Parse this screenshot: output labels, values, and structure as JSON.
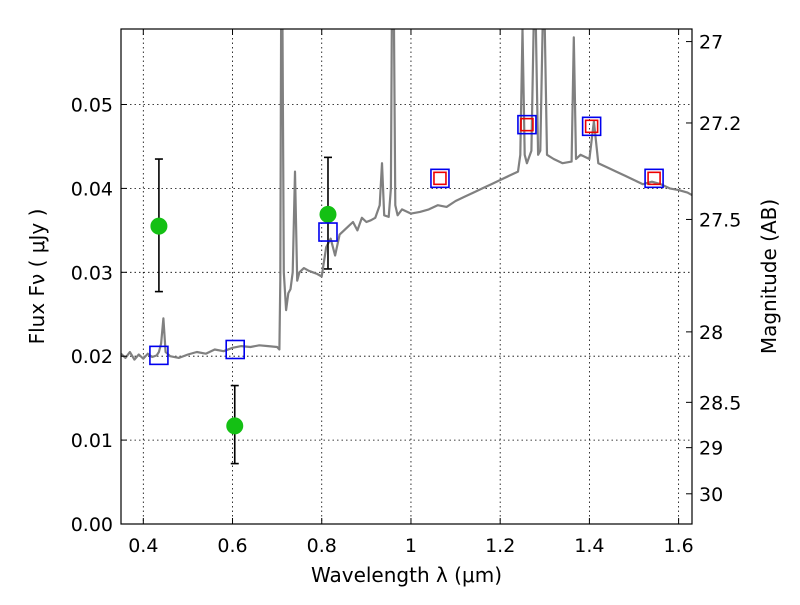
{
  "chart_data": {
    "type": "scatter",
    "xlabel": "Wavelength  λ (μm)",
    "ylabel": "Flux  Fν  ( μJy )",
    "y2label": "Magnitude (AB)",
    "xlim": [
      0.35,
      1.63
    ],
    "ylim": [
      0.0,
      0.059
    ],
    "grid": true,
    "x_ticks": [
      0.4,
      0.6,
      0.8,
      1.0,
      1.2,
      1.4,
      1.6
    ],
    "x_tick_labels": [
      "0.4",
      "0.6",
      "0.8",
      "1",
      "1.2",
      "1.4",
      "1.6"
    ],
    "y_ticks": [
      0.0,
      0.01,
      0.02,
      0.03,
      0.04,
      0.05
    ],
    "y_tick_labels": [
      "0.00",
      "0.01",
      "0.02",
      "0.03",
      "0.04",
      "0.05"
    ],
    "y2_ticks": [
      {
        "label": "27",
        "flux": 0.0575
      },
      {
        "label": "27.2",
        "flux": 0.0478
      },
      {
        "label": "27.5",
        "flux": 0.0363
      },
      {
        "label": "28",
        "flux": 0.0229
      },
      {
        "label": "28.5",
        "flux": 0.0145
      },
      {
        "label": "29",
        "flux": 0.0091
      },
      {
        "label": "30",
        "flux": 0.0036
      }
    ],
    "series": [
      {
        "name": "model spectrum",
        "kind": "line",
        "color": "#808080",
        "points": [
          [
            0.35,
            0.0203
          ],
          [
            0.36,
            0.0198
          ],
          [
            0.37,
            0.0205
          ],
          [
            0.38,
            0.0196
          ],
          [
            0.39,
            0.0202
          ],
          [
            0.4,
            0.0197
          ],
          [
            0.41,
            0.0203
          ],
          [
            0.42,
            0.0199
          ],
          [
            0.43,
            0.0201
          ],
          [
            0.435,
            0.0205
          ],
          [
            0.44,
            0.0215
          ],
          [
            0.445,
            0.0245
          ],
          [
            0.45,
            0.0205
          ],
          [
            0.46,
            0.02
          ],
          [
            0.48,
            0.0198
          ],
          [
            0.5,
            0.0202
          ],
          [
            0.52,
            0.0205
          ],
          [
            0.54,
            0.0203
          ],
          [
            0.56,
            0.0208
          ],
          [
            0.58,
            0.0206
          ],
          [
            0.6,
            0.021
          ],
          [
            0.62,
            0.0212
          ],
          [
            0.64,
            0.0211
          ],
          [
            0.66,
            0.0213
          ],
          [
            0.68,
            0.0212
          ],
          [
            0.7,
            0.0211
          ],
          [
            0.705,
            0.0208
          ],
          [
            0.707,
            0.029
          ],
          [
            0.709,
            0.059
          ],
          [
            0.712,
            0.059
          ],
          [
            0.715,
            0.03
          ],
          [
            0.72,
            0.0255
          ],
          [
            0.725,
            0.0275
          ],
          [
            0.73,
            0.028
          ],
          [
            0.735,
            0.03
          ],
          [
            0.74,
            0.042
          ],
          [
            0.745,
            0.029
          ],
          [
            0.75,
            0.03
          ],
          [
            0.76,
            0.0305
          ],
          [
            0.77,
            0.0302
          ],
          [
            0.78,
            0.03
          ],
          [
            0.79,
            0.0298
          ],
          [
            0.8,
            0.0295
          ],
          [
            0.81,
            0.033
          ],
          [
            0.82,
            0.034
          ],
          [
            0.83,
            0.032
          ],
          [
            0.84,
            0.0345
          ],
          [
            0.85,
            0.035
          ],
          [
            0.86,
            0.0355
          ],
          [
            0.87,
            0.036
          ],
          [
            0.88,
            0.035
          ],
          [
            0.89,
            0.0365
          ],
          [
            0.9,
            0.036
          ],
          [
            0.91,
            0.0362
          ],
          [
            0.92,
            0.0365
          ],
          [
            0.93,
            0.038
          ],
          [
            0.935,
            0.043
          ],
          [
            0.94,
            0.0368
          ],
          [
            0.95,
            0.0366
          ],
          [
            0.955,
            0.04
          ],
          [
            0.957,
            0.059
          ],
          [
            0.962,
            0.059
          ],
          [
            0.965,
            0.038
          ],
          [
            0.97,
            0.0368
          ],
          [
            0.98,
            0.0375
          ],
          [
            1.0,
            0.037
          ],
          [
            1.02,
            0.0372
          ],
          [
            1.04,
            0.0375
          ],
          [
            1.06,
            0.038
          ],
          [
            1.08,
            0.0378
          ],
          [
            1.1,
            0.0385
          ],
          [
            1.12,
            0.039
          ],
          [
            1.14,
            0.0395
          ],
          [
            1.16,
            0.04
          ],
          [
            1.18,
            0.0405
          ],
          [
            1.2,
            0.041
          ],
          [
            1.22,
            0.0415
          ],
          [
            1.24,
            0.042
          ],
          [
            1.245,
            0.044
          ],
          [
            1.25,
            0.059
          ],
          [
            1.255,
            0.044
          ],
          [
            1.26,
            0.043
          ],
          [
            1.27,
            0.0445
          ],
          [
            1.275,
            0.059
          ],
          [
            1.28,
            0.059
          ],
          [
            1.285,
            0.044
          ],
          [
            1.29,
            0.0445
          ],
          [
            1.295,
            0.059
          ],
          [
            1.3,
            0.059
          ],
          [
            1.305,
            0.044
          ],
          [
            1.32,
            0.0435
          ],
          [
            1.34,
            0.043
          ],
          [
            1.36,
            0.0432
          ],
          [
            1.365,
            0.058
          ],
          [
            1.37,
            0.0435
          ],
          [
            1.38,
            0.044
          ],
          [
            1.4,
            0.0435
          ],
          [
            1.41,
            0.048
          ],
          [
            1.42,
            0.043
          ],
          [
            1.44,
            0.0425
          ],
          [
            1.46,
            0.042
          ],
          [
            1.48,
            0.0415
          ],
          [
            1.5,
            0.041
          ],
          [
            1.52,
            0.0405
          ],
          [
            1.54,
            0.0408
          ],
          [
            1.56,
            0.0405
          ],
          [
            1.58,
            0.04
          ],
          [
            1.6,
            0.0398
          ],
          [
            1.62,
            0.0395
          ],
          [
            1.63,
            0.0392
          ]
        ]
      },
      {
        "name": "observed photometry",
        "kind": "points-with-errorbars",
        "marker": "circle",
        "color": "#14c014",
        "points": [
          {
            "x": 0.435,
            "y": 0.0355,
            "yerr_low": 0.0078,
            "yerr_high": 0.008
          },
          {
            "x": 0.605,
            "y": 0.0117,
            "yerr_low": 0.0045,
            "yerr_high": 0.0048
          },
          {
            "x": 0.814,
            "y": 0.0369,
            "yerr_low": 0.0065,
            "yerr_high": 0.0068
          }
        ]
      },
      {
        "name": "model photometry",
        "kind": "points",
        "marker": "open-square",
        "color": "#0000ee",
        "points": [
          {
            "x": 0.435,
            "y": 0.0201
          },
          {
            "x": 0.606,
            "y": 0.0208
          },
          {
            "x": 0.814,
            "y": 0.0348
          },
          {
            "x": 1.065,
            "y": 0.0412
          },
          {
            "x": 1.26,
            "y": 0.0476
          },
          {
            "x": 1.405,
            "y": 0.0474
          },
          {
            "x": 1.545,
            "y": 0.0412
          }
        ]
      },
      {
        "name": "model photometry (red)",
        "kind": "points",
        "marker": "open-square",
        "color": "#ee0000",
        "points": [
          {
            "x": 1.065,
            "y": 0.0412
          },
          {
            "x": 1.26,
            "y": 0.0476
          },
          {
            "x": 1.405,
            "y": 0.0474
          },
          {
            "x": 1.545,
            "y": 0.0412
          }
        ]
      }
    ]
  }
}
